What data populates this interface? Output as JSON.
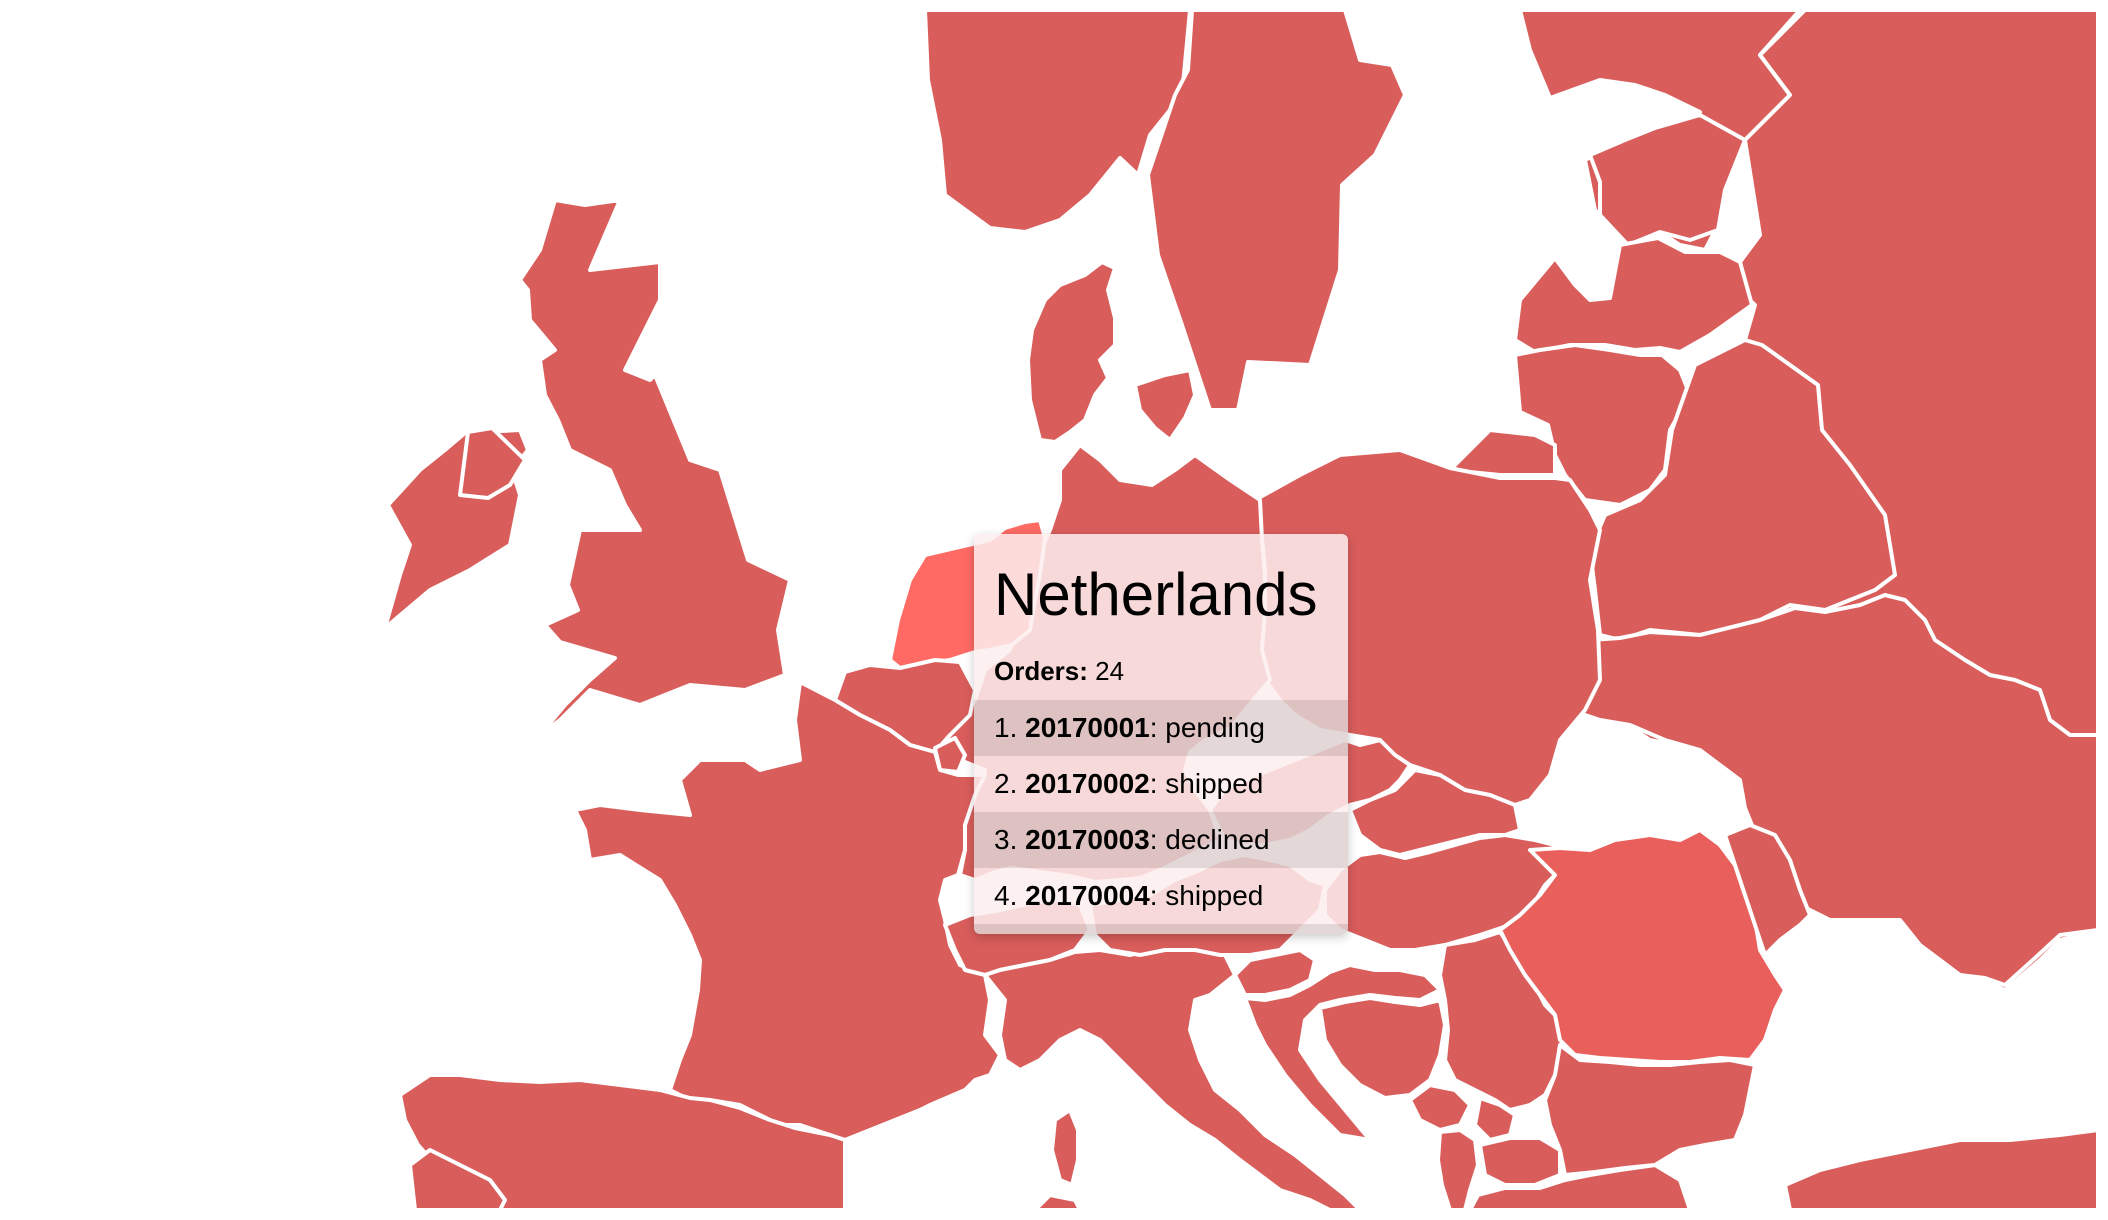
{
  "map": {
    "colors": {
      "base": "#d85d5b",
      "netherlands": "#ff6b64",
      "highlight": "#e95f5b",
      "border": "#ffffff",
      "background": "#ffffff"
    }
  },
  "tooltip": {
    "country": "Netherlands",
    "orders_label": "Orders:",
    "orders_count": "24",
    "orders": [
      {
        "index": "1.",
        "id": "20170001",
        "status": ": pending"
      },
      {
        "index": "2.",
        "id": "20170002",
        "status": ": shipped"
      },
      {
        "index": "3.",
        "id": "20170003",
        "status": ": declined"
      },
      {
        "index": "4.",
        "id": "20170004",
        "status": ": shipped"
      }
    ]
  }
}
